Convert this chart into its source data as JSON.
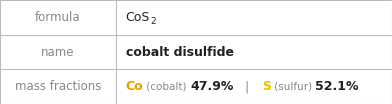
{
  "rows": [
    {
      "label": "formula"
    },
    {
      "label": "name"
    },
    {
      "label": "mass fractions"
    }
  ],
  "formula_main": "CoS",
  "formula_sub": "2",
  "name_value": "cobalt disulfide",
  "mass_co_symbol": "Co",
  "mass_co_label": " (cobalt) ",
  "mass_co_value": "47.9%",
  "mass_sep": "   |   ",
  "mass_s_symbol": "S",
  "mass_s_label": " (sulfur) ",
  "mass_s_value": "52.1%",
  "co_color": "#e8a000",
  "s_color": "#e8c000",
  "label_color": "#888888",
  "text_color": "#222222",
  "bg_color": "#ffffff",
  "border_color": "#bbbbbb",
  "col_split": 0.295
}
